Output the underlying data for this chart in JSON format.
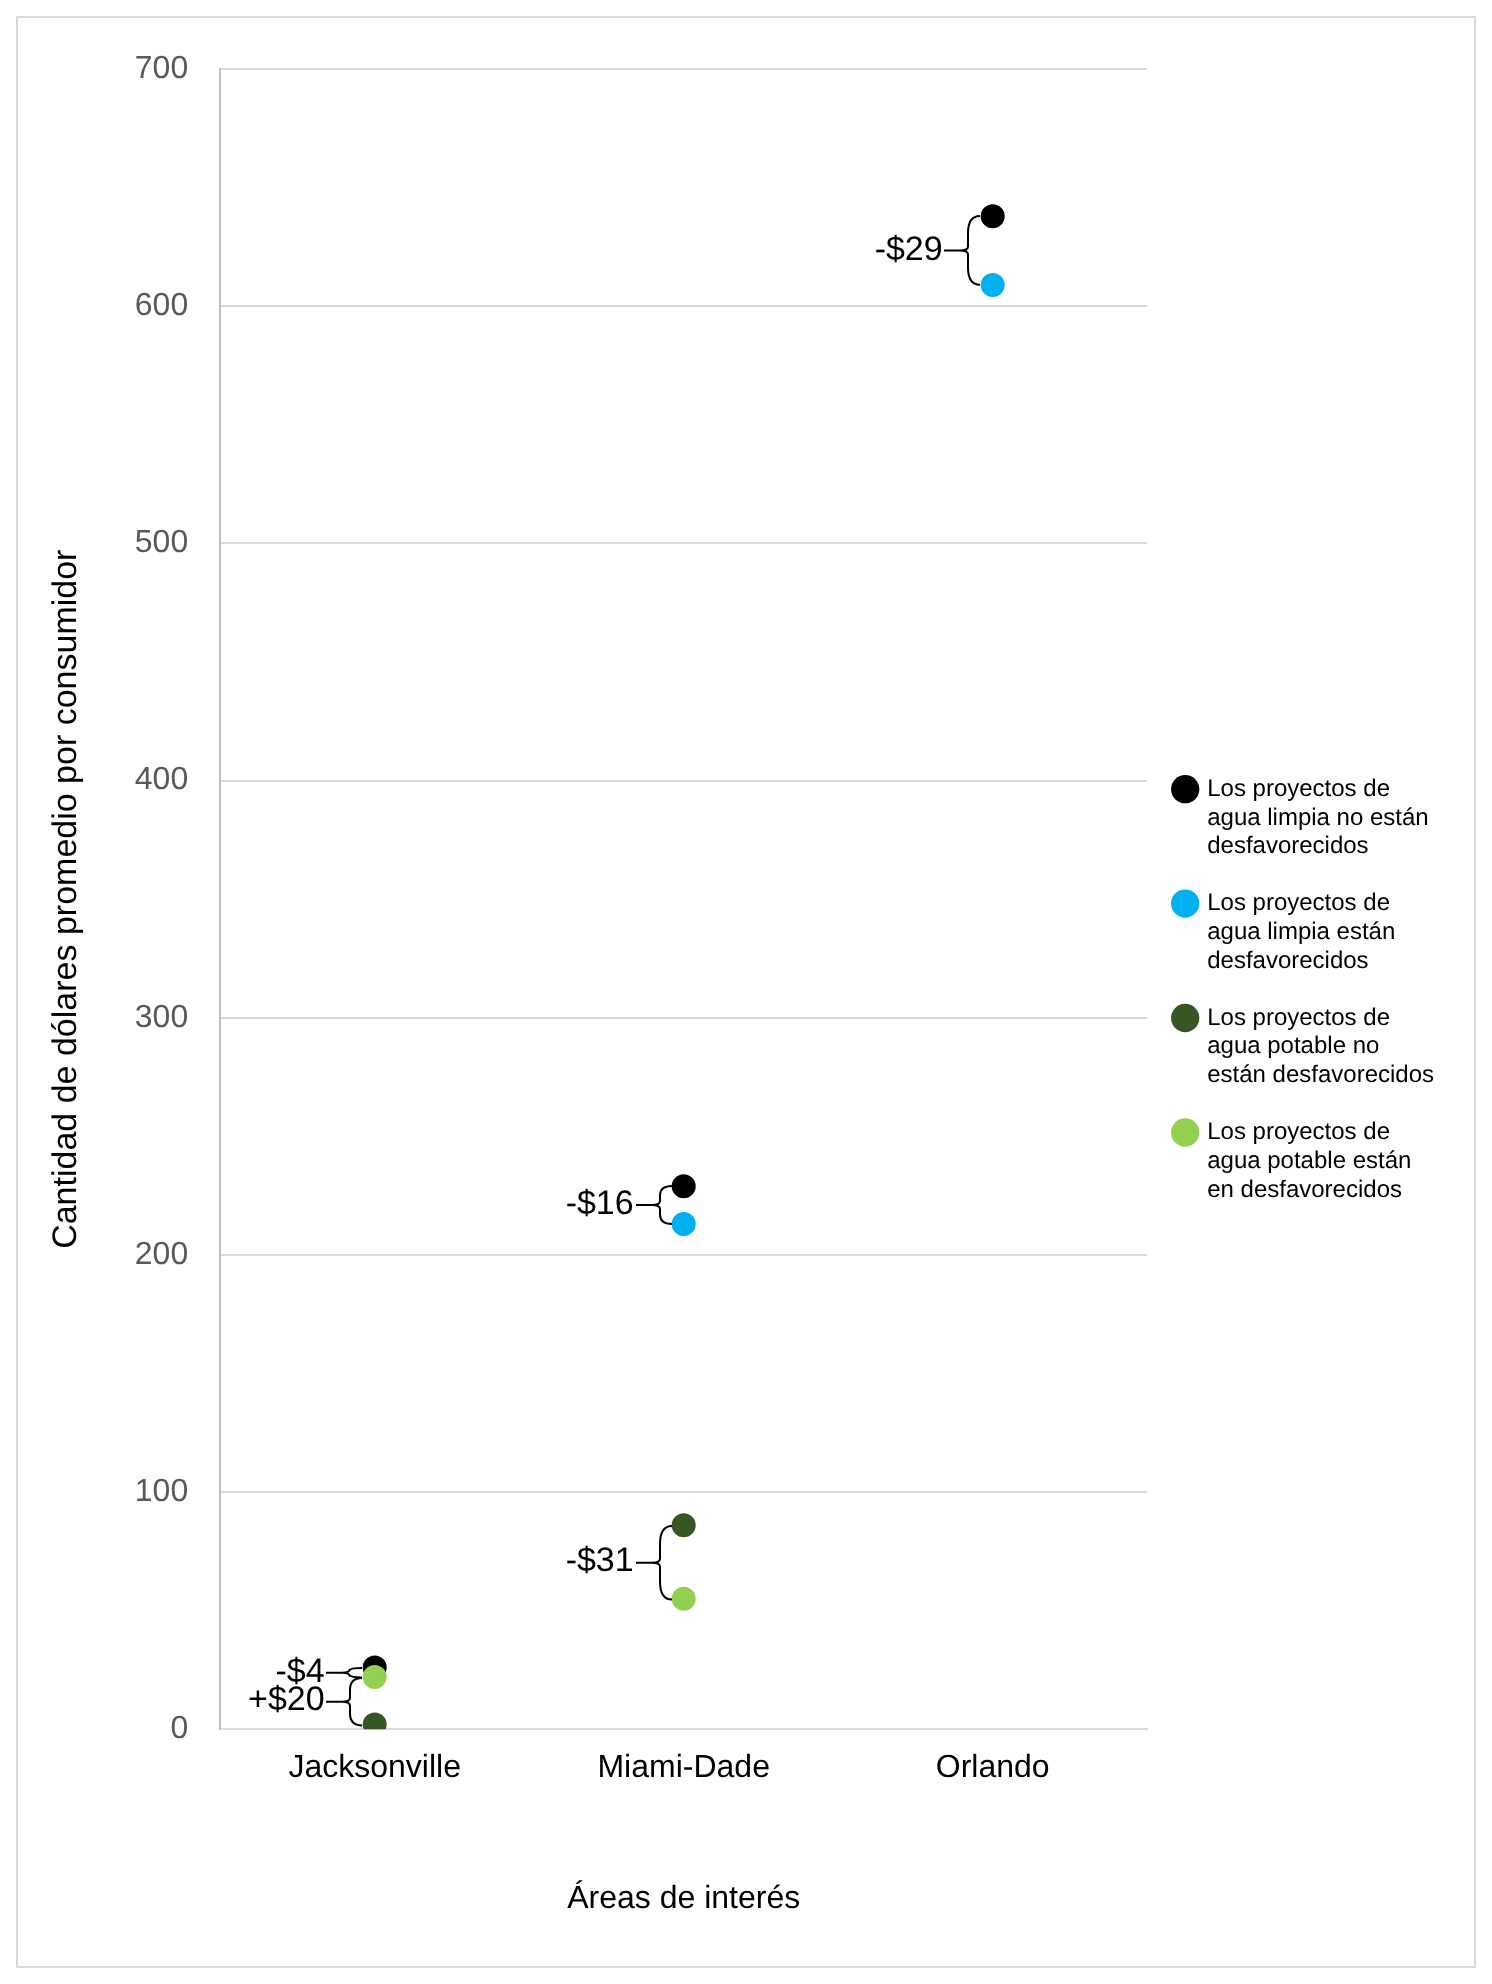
{
  "chart_data": {
    "type": "scatter",
    "xlabel": "Áreas de interés",
    "ylabel": "Cantidad de dólares promedio por consumidor",
    "categories": [
      "Jacksonville",
      "Miami-Dade",
      "Orlando"
    ],
    "series": [
      {
        "name": "Los proyectos de agua limpia no están desfavorecidos",
        "color": "#000000",
        "values": [
          26,
          229,
          638
        ]
      },
      {
        "name": "Los proyectos de agua limpia están desfavorecidos",
        "color": "#00b0f0",
        "values": [
          null,
          213,
          609
        ]
      },
      {
        "name": "Los proyectos de agua potable no están desfavorecidos",
        "color": "#375623",
        "values": [
          2,
          86,
          null
        ]
      },
      {
        "name": "Los proyectos de agua potable están en desfavorecidos",
        "color": "#92d050",
        "values": [
          22,
          55,
          null
        ]
      }
    ],
    "annotations": [
      {
        "text": "-$29",
        "x": "Orlando",
        "y": 638
      },
      {
        "text": "-$16",
        "x": "Miami-Dade",
        "y": 229
      },
      {
        "text": "-$31",
        "x": "Miami-Dade",
        "y": 86
      },
      {
        "text": "-$4",
        "x": "Jacksonville",
        "y": 26
      },
      {
        "text": "+$20",
        "x": "Jacksonville",
        "y": 22
      }
    ],
    "ylim": [
      0,
      700
    ],
    "yticks": [
      0,
      100,
      200,
      300,
      400,
      500,
      600,
      700
    ],
    "grid": "y",
    "legend": "right",
    "marker": "circle"
  }
}
